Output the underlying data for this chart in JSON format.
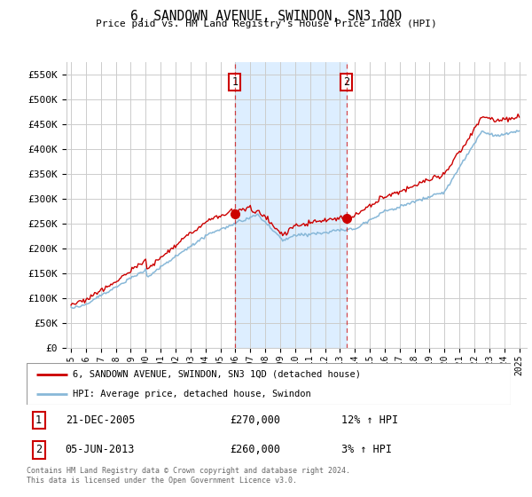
{
  "title": "6, SANDOWN AVENUE, SWINDON, SN3 1QD",
  "subtitle": "Price paid vs. HM Land Registry's House Price Index (HPI)",
  "legend_line1": "6, SANDOWN AVENUE, SWINDON, SN3 1QD (detached house)",
  "legend_line2": "HPI: Average price, detached house, Swindon",
  "table_rows": [
    {
      "num": "1",
      "date": "21-DEC-2005",
      "price": "£270,000",
      "hpi": "12% ↑ HPI"
    },
    {
      "num": "2",
      "date": "05-JUN-2013",
      "price": "£260,000",
      "hpi": "3% ↑ HPI"
    }
  ],
  "footnote": "Contains HM Land Registry data © Crown copyright and database right 2024.\nThis data is licensed under the Open Government Licence v3.0.",
  "sale1_year": 2005.97,
  "sale2_year": 2013.43,
  "sale1_price": 270000,
  "sale2_price": 260000,
  "red_color": "#cc0000",
  "blue_color": "#88b8d8",
  "shaded_color": "#ddeeff",
  "background_color": "#ffffff",
  "grid_color": "#cccccc",
  "ylim": [
    0,
    575000
  ],
  "yticks": [
    0,
    50000,
    100000,
    150000,
    200000,
    250000,
    300000,
    350000,
    400000,
    450000,
    500000,
    550000
  ],
  "ytick_labels": [
    "£0",
    "£50K",
    "£100K",
    "£150K",
    "£200K",
    "£250K",
    "£300K",
    "£350K",
    "£400K",
    "£450K",
    "£500K",
    "£550K"
  ],
  "year_start": 1995,
  "year_end": 2025
}
